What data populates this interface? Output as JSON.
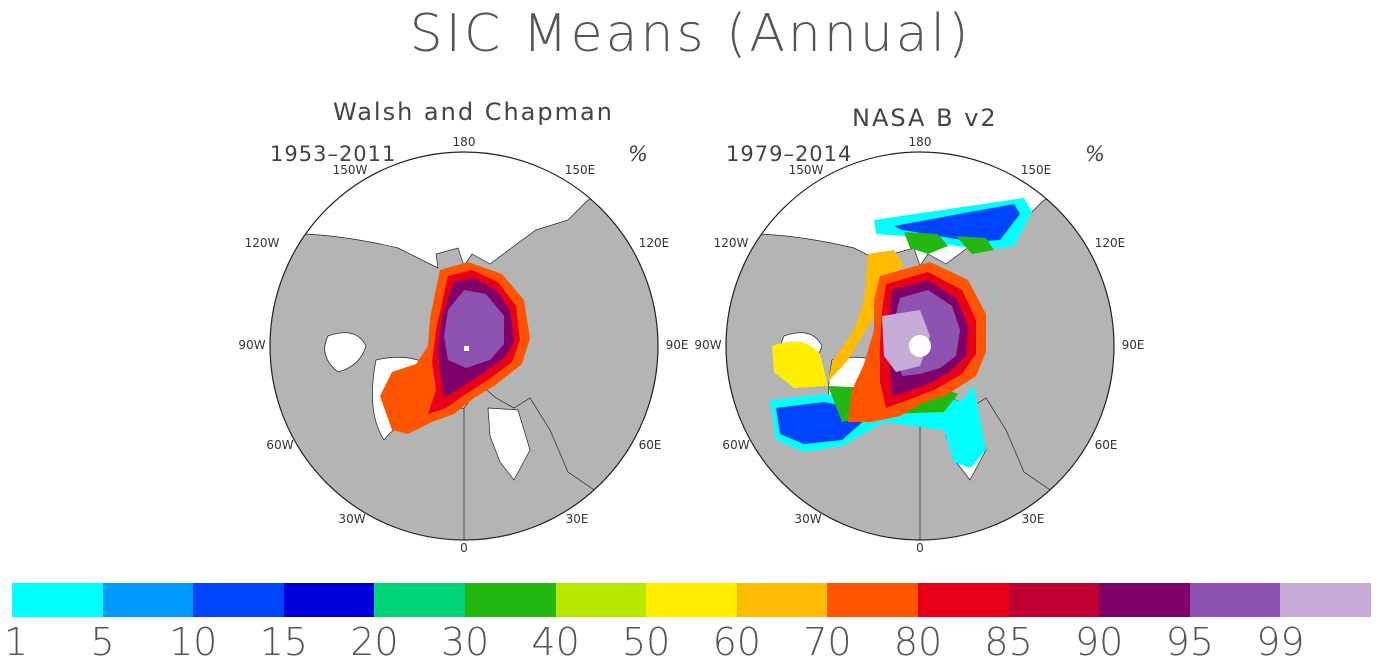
{
  "title": "SIC Means (Annual)",
  "panels": [
    {
      "title": "Walsh and Chapman",
      "period": "1953–2011",
      "unit": "%",
      "lon_labels": {
        "l0": "0",
        "l30e": "30E",
        "l60e": "60E",
        "l90e": "90E",
        "l120e": "120E",
        "l150e": "150E",
        "l180": "180",
        "l150w": "150W",
        "l120w": "120W",
        "l90w": "90W",
        "l60w": "60W",
        "l30w": "30W"
      }
    },
    {
      "title": "NASA B v2",
      "period": "1979–2014",
      "unit": "%",
      "lon_labels": {
        "l0": "0",
        "l30e": "30E",
        "l60e": "60E",
        "l90e": "90E",
        "l120e": "120E",
        "l150e": "150E",
        "l180": "180",
        "l150w": "150W",
        "l120w": "120W",
        "l90w": "90W",
        "l60w": "60W",
        "l30w": "30W"
      }
    }
  ],
  "colorbar": {
    "ticks": [
      "1",
      "5",
      "10",
      "15",
      "20",
      "30",
      "40",
      "50",
      "60",
      "70",
      "80",
      "85",
      "90",
      "95",
      "99"
    ],
    "colors": [
      "#00ffff",
      "#0099ff",
      "#0044ff",
      "#0000dd",
      "#00d47a",
      "#22b811",
      "#b8e800",
      "#ffee00",
      "#ffbb00",
      "#ff5500",
      "#e80018",
      "#c00030",
      "#80006a",
      "#8e52b0",
      "#c7acd8"
    ]
  },
  "colors": {
    "land": "#b4b4b4",
    "ocean": "#ffffff"
  }
}
